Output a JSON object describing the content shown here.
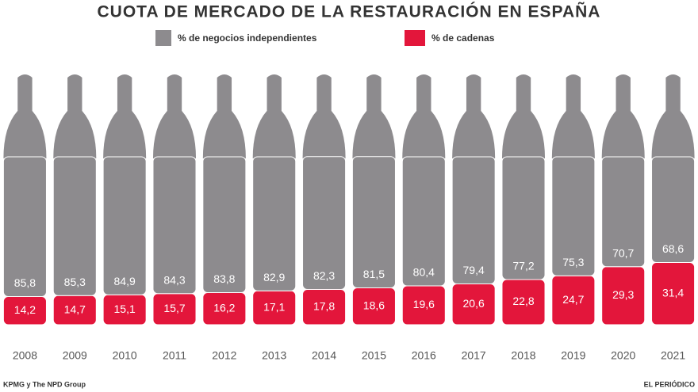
{
  "chart_data": {
    "type": "stacked-bar",
    "title": "CUOTA DE MERCADO DE LA RESTAURACIÓN EN ESPAÑA",
    "categories": [
      "2008",
      "2009",
      "2010",
      "2011",
      "2012",
      "2013",
      "2014",
      "2015",
      "2016",
      "2017",
      "2018",
      "2019",
      "2020",
      "2021"
    ],
    "series": [
      {
        "name": "% de cadenas",
        "color": "#e3163b",
        "values": [
          14.2,
          14.7,
          15.1,
          15.7,
          16.2,
          17.1,
          17.8,
          18.6,
          19.6,
          20.6,
          22.8,
          24.7,
          29.3,
          31.4
        ],
        "value_labels": [
          "14,2",
          "14,7",
          "15,1",
          "15,7",
          "16,2",
          "17,1",
          "17,8",
          "18,6",
          "19,6",
          "20,6",
          "22,8",
          "24,7",
          "29,3",
          "31,4"
        ]
      },
      {
        "name": "% de negocios independientes",
        "color": "#8d8b8e",
        "values": [
          85.8,
          85.3,
          84.9,
          84.3,
          83.8,
          82.9,
          82.3,
          81.5,
          80.4,
          79.4,
          77.2,
          75.3,
          70.7,
          68.6
        ],
        "value_labels": [
          "85,8",
          "85,3",
          "84,9",
          "84,3",
          "83,8",
          "82,9",
          "82,3",
          "81,5",
          "80,4",
          "79,4",
          "77,2",
          "75,3",
          "70,7",
          "68,6"
        ]
      }
    ],
    "ylim": [
      0,
      100
    ],
    "source": "KPMG y The NPD Group",
    "credit": "EL PERIÓDICO"
  }
}
